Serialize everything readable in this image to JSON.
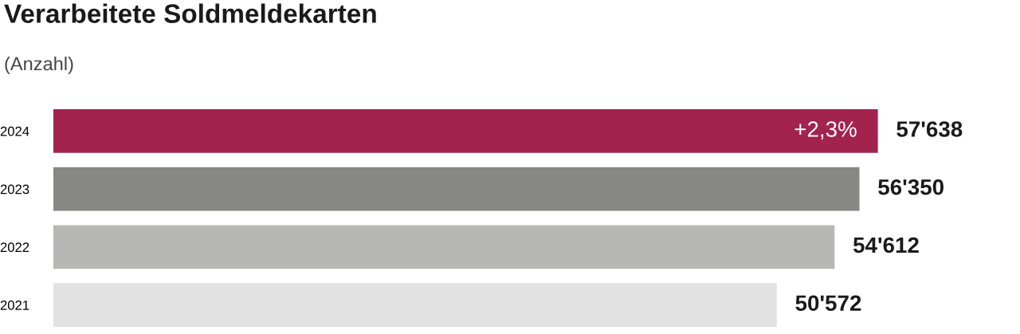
{
  "chart_data": {
    "type": "bar",
    "orientation": "horizontal",
    "title": "Verarbeitete Soldmeldekarten",
    "subtitle": "(Anzahl)",
    "categories": [
      "2024",
      "2023",
      "2022",
      "2021"
    ],
    "values": [
      57638,
      56350,
      54612,
      50572
    ],
    "colors": [
      "#a3234f",
      "#878784",
      "#b7b7b6",
      "#e2e2e2"
    ],
    "value_labels": [
      "57'638",
      "56'350",
      "54'612",
      "50'572"
    ],
    "annotations": [
      "+2,3%"
    ],
    "grid": false,
    "legend": false,
    "tick_labels": "y"
  }
}
